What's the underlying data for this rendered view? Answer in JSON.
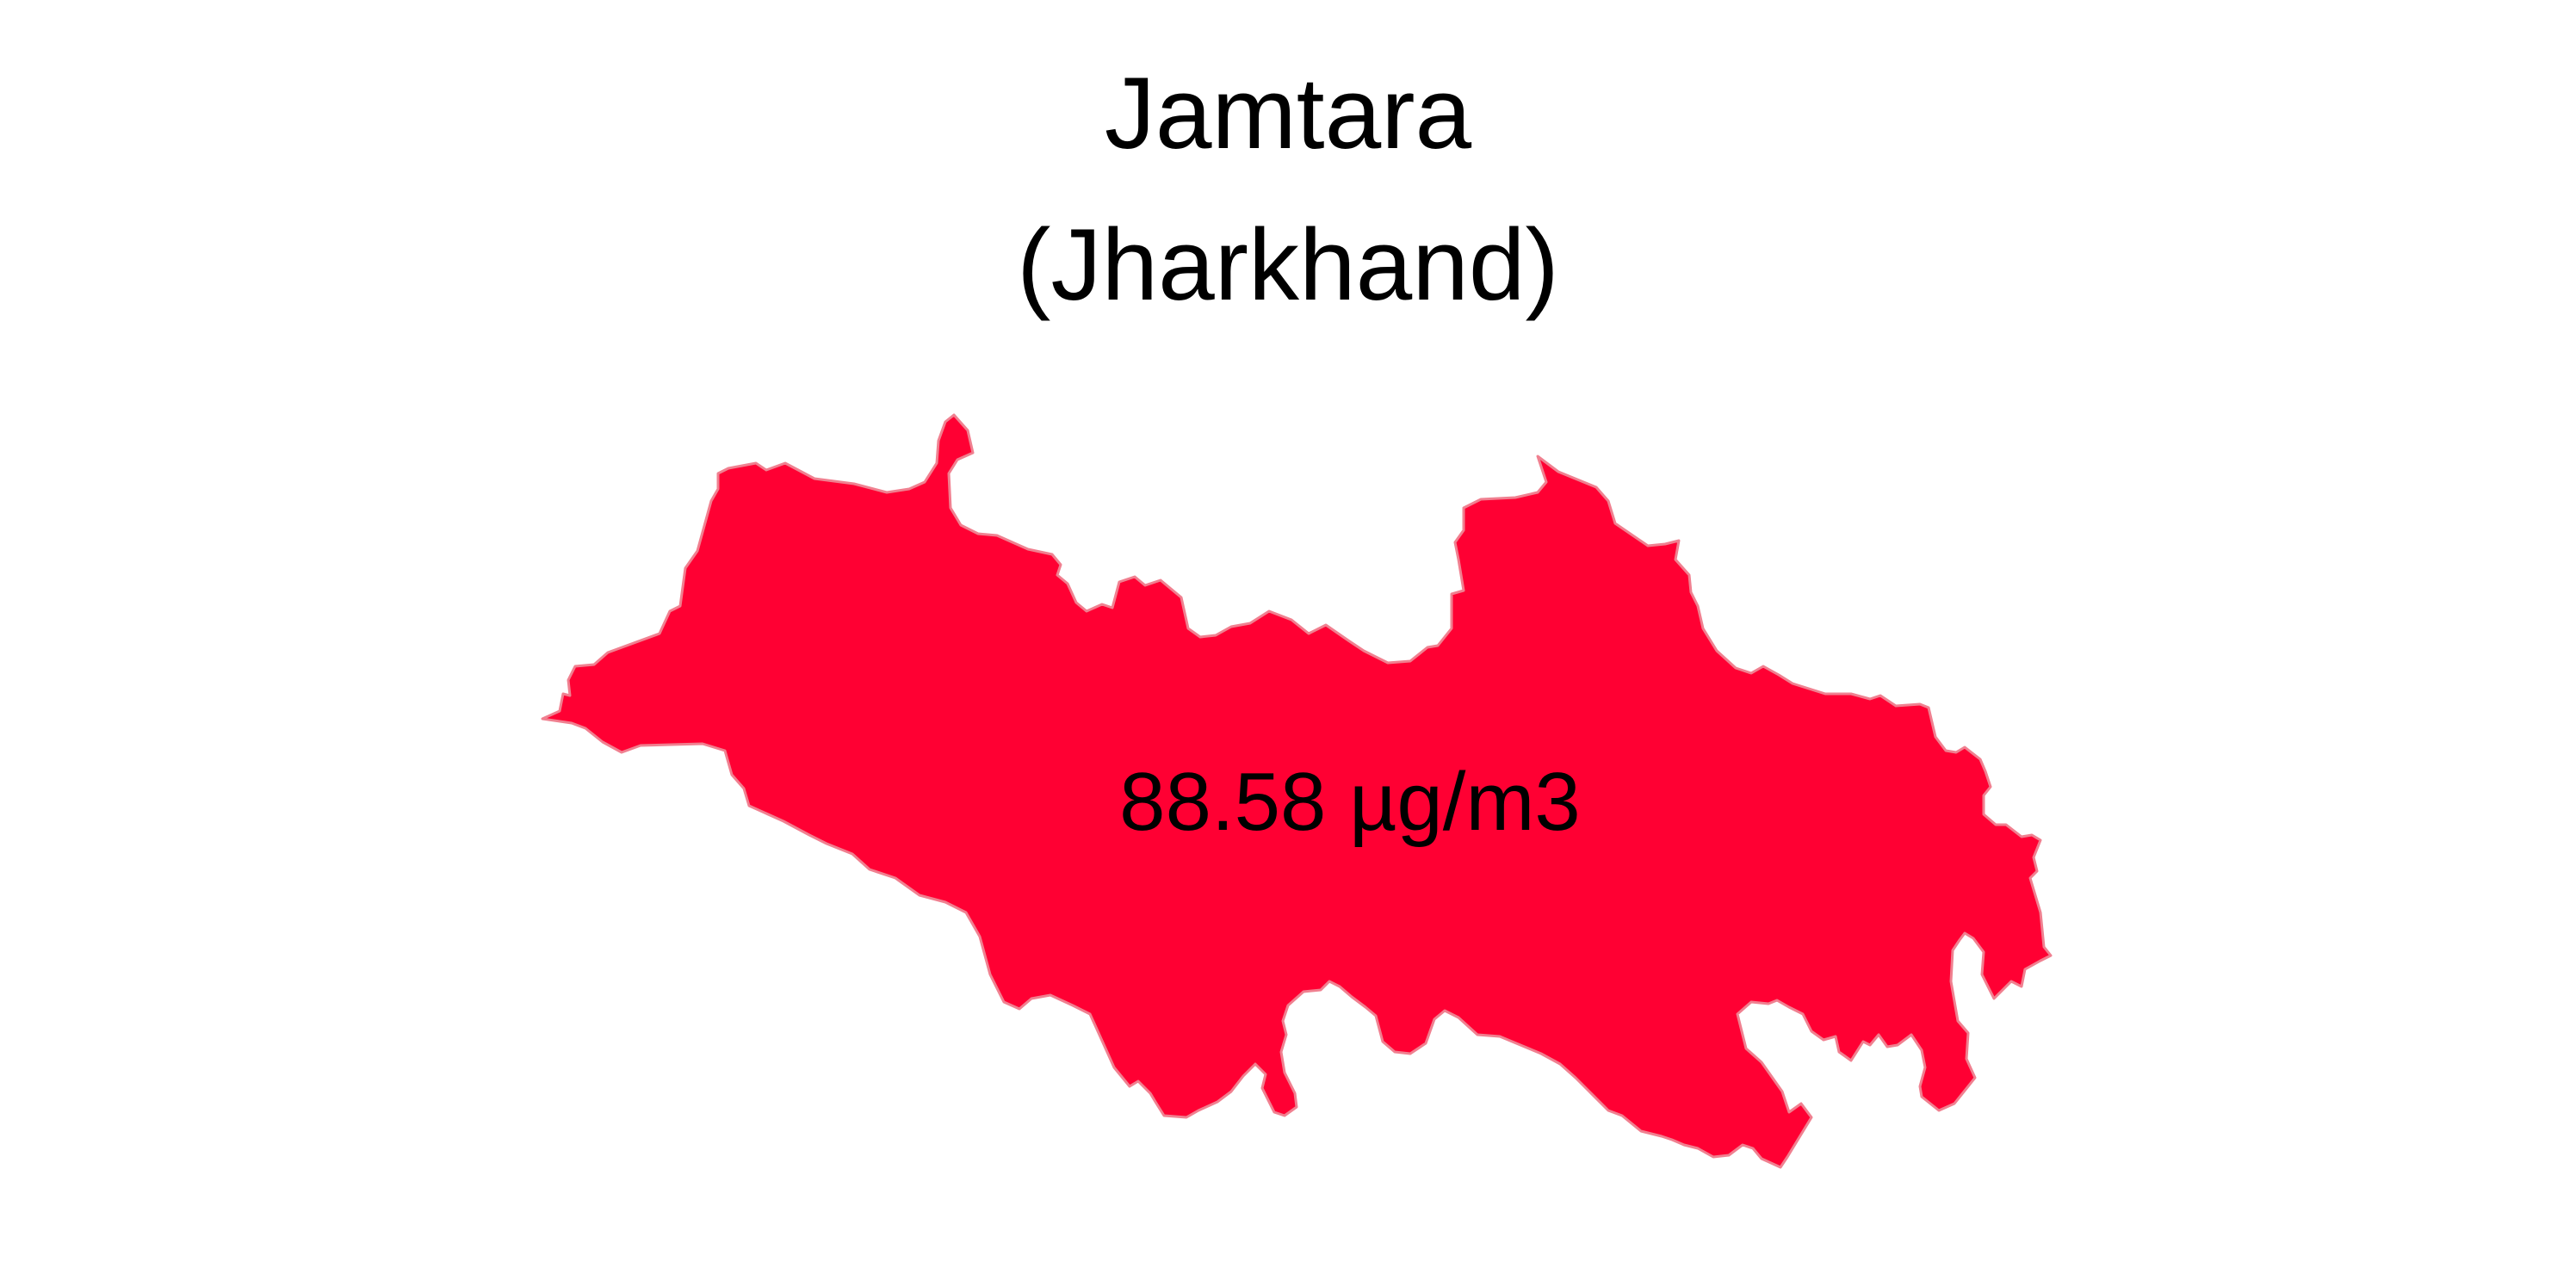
{
  "title": {
    "district": "Jamtara",
    "state": "(Jharkhand)"
  },
  "region": {
    "value_label": "88.58 µg/m3",
    "fill_color": "#FF0033",
    "border_color": "#F08090"
  }
}
